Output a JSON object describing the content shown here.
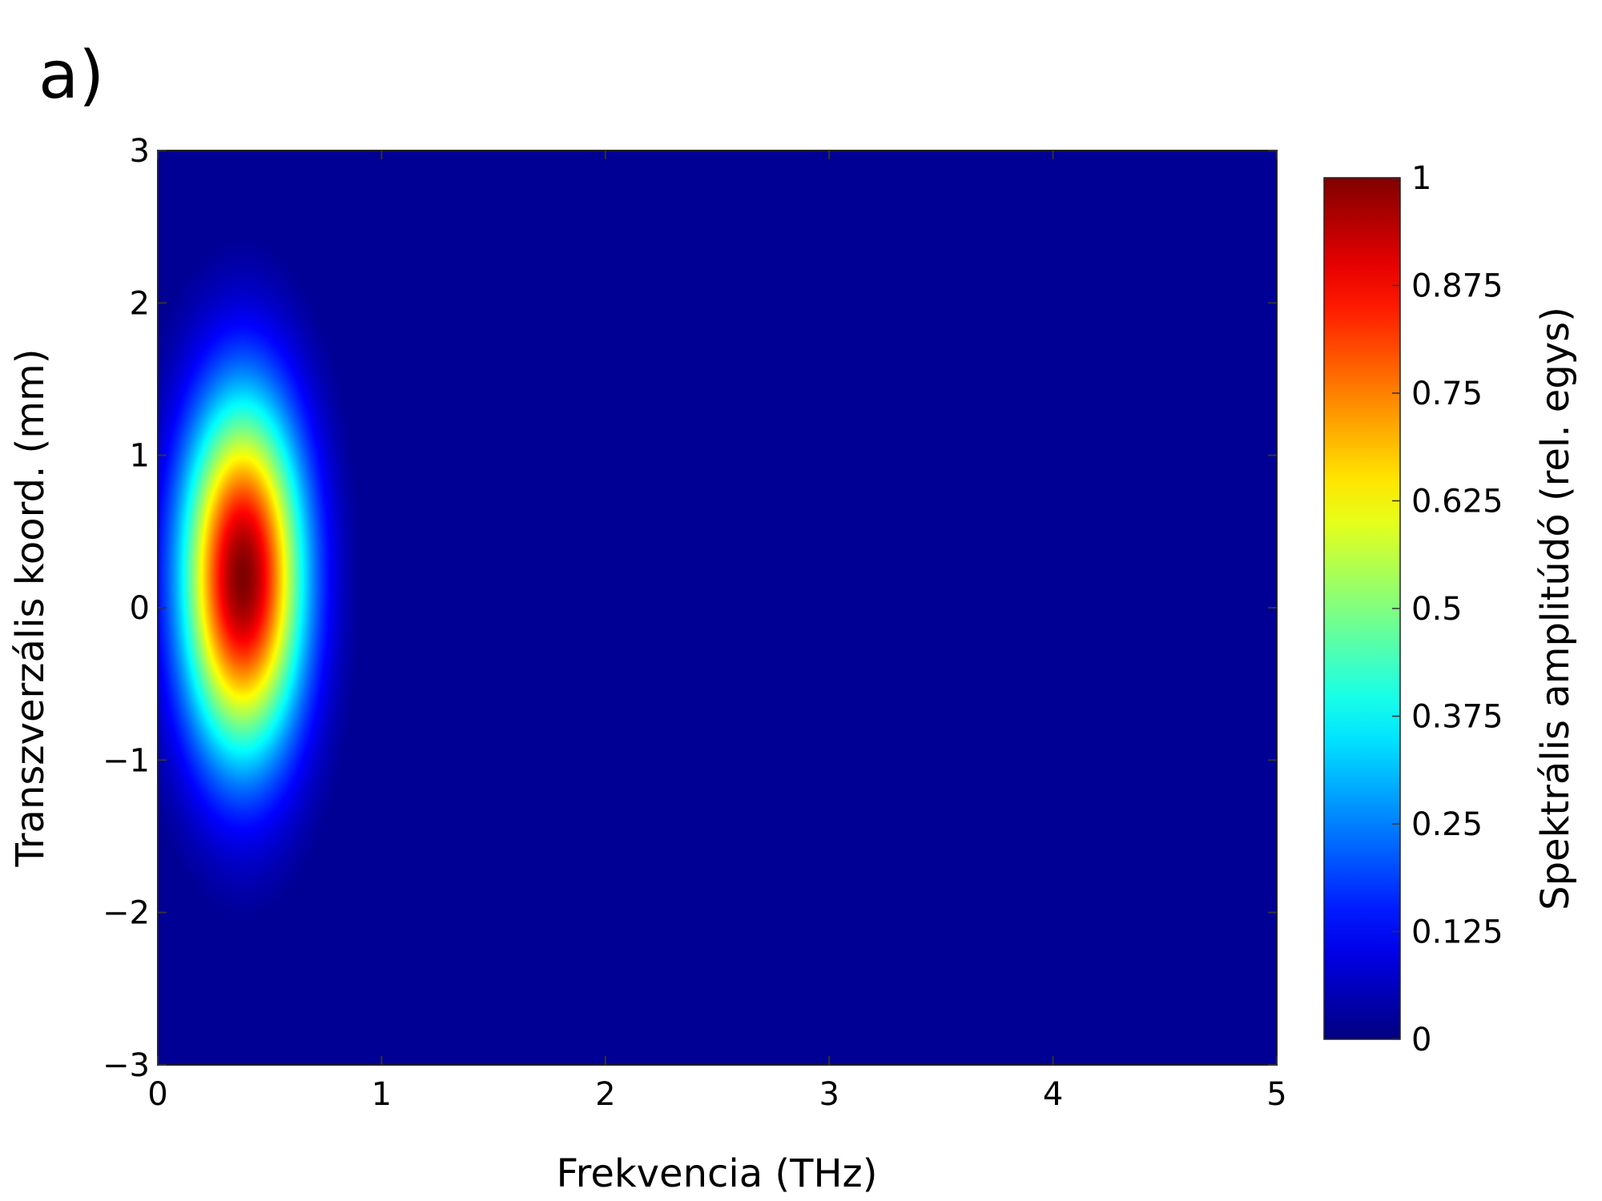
{
  "panel_label": "a)",
  "chart_data": {
    "type": "heatmap",
    "title": "",
    "xlabel": "Frekvencia (THz)",
    "ylabel": "Transzverzális koord. (mm)",
    "xlim": [
      0,
      5
    ],
    "ylim": [
      -3,
      3
    ],
    "xticks": [
      0,
      1,
      2,
      3,
      4,
      5
    ],
    "xtick_labels": [
      "0",
      "1",
      "2",
      "3",
      "4",
      "5"
    ],
    "yticks": [
      -3,
      -2,
      -1,
      0,
      1,
      2,
      3
    ],
    "ytick_labels": [
      "−3",
      "−2",
      "−1",
      "0",
      "1",
      "2",
      "3"
    ],
    "grid": false,
    "colormap": "jet",
    "colorbar": {
      "label": "Spektrális amplitúdó (rel. egys)",
      "range": [
        0,
        1
      ],
      "ticks": [
        0,
        0.125,
        0.25,
        0.375,
        0.5,
        0.625,
        0.75,
        0.875,
        1
      ],
      "tick_labels": [
        "0",
        "0.125",
        "0.25",
        "0.375",
        "0.5",
        "0.625",
        "0.75",
        "0.875",
        "1"
      ]
    },
    "peak": {
      "x": 0.38,
      "y": 0.2,
      "value": 1
    },
    "x_width": 0.27,
    "y_width": 1.15,
    "background_value": 0.02
  }
}
